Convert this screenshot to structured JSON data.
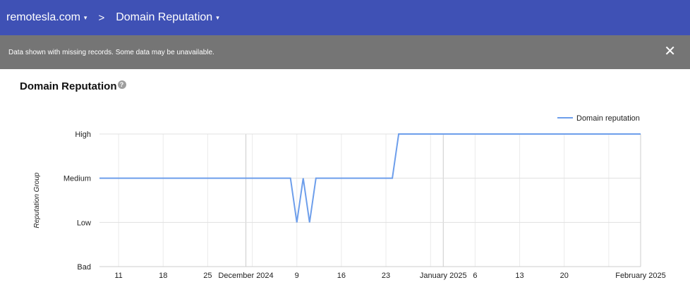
{
  "topbar": {
    "domain": "remotesla.com",
    "page": "Domain Reputation",
    "separator": ">",
    "caret": "▾"
  },
  "banner": {
    "message": "Data shown with missing records. Some data may be unavailable.",
    "close": "✕"
  },
  "section": {
    "title": "Domain Reputation",
    "help": "?"
  },
  "colors": {
    "topbar": "#3f51b5",
    "banner": "#757575",
    "line": "#6d9eeb"
  },
  "chart_data": {
    "type": "line",
    "title": "Domain Reputation",
    "ylabel": "Reputation Group",
    "xlabel": "",
    "y_categories": [
      "Bad",
      "Low",
      "Medium",
      "High"
    ],
    "xlim": [
      "2024-11-08",
      "2025-02-01"
    ],
    "legend": {
      "label": "Domain reputation",
      "position": "top-right"
    },
    "x_ticks": [
      {
        "date": "2024-11-11",
        "label": "11"
      },
      {
        "date": "2024-11-18",
        "label": "18"
      },
      {
        "date": "2024-11-25",
        "label": "25"
      },
      {
        "date": "2024-12-01",
        "label": "December 2024"
      },
      {
        "date": "2024-12-09",
        "label": "9"
      },
      {
        "date": "2024-12-16",
        "label": "16"
      },
      {
        "date": "2024-12-23",
        "label": "23"
      },
      {
        "date": "2025-01-01",
        "label": "January 2025"
      },
      {
        "date": "2025-01-06",
        "label": "6"
      },
      {
        "date": "2025-01-13",
        "label": "13"
      },
      {
        "date": "2025-01-20",
        "label": "20"
      },
      {
        "date": "2025-02-01",
        "label": "February 2025"
      }
    ],
    "series": [
      {
        "name": "Domain reputation",
        "points": [
          {
            "date": "2024-11-08",
            "value": "Medium"
          },
          {
            "date": "2024-12-08",
            "value": "Medium"
          },
          {
            "date": "2024-12-09",
            "value": "Low"
          },
          {
            "date": "2024-12-10",
            "value": "Medium"
          },
          {
            "date": "2024-12-11",
            "value": "Low"
          },
          {
            "date": "2024-12-12",
            "value": "Medium"
          },
          {
            "date": "2024-12-24",
            "value": "Medium"
          },
          {
            "date": "2024-12-25",
            "value": "High"
          },
          {
            "date": "2025-02-01",
            "value": "High"
          }
        ]
      }
    ]
  }
}
